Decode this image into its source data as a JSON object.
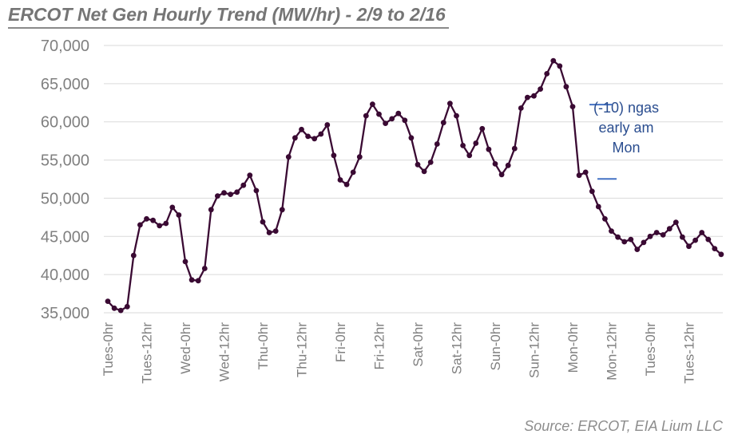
{
  "title": "ERCOT Net Gen Hourly Trend (MW/hr) - 2/9 to 2/16",
  "source_note": "Source: ERCOT, EIA Lium LLC",
  "annotation": {
    "lines": [
      "(-10) ngas",
      "early am",
      "Mon"
    ]
  },
  "colors": {
    "line": "#3a0a33",
    "marker": "#3a0a33",
    "grid": "#dadada",
    "axis_text": "#808080",
    "title_text": "#757575",
    "annotation_text": "#2a4d8f",
    "annotation_dash": "#4472c4",
    "source_text": "#8d8d8d",
    "background": "#ffffff"
  },
  "chart_data": {
    "type": "line",
    "title": "ERCOT Net Gen Hourly Trend (MW/hr) - 2/9 to 2/16",
    "series_name": "ERCOT net generation (MW/hr)",
    "xlabel": "",
    "ylabel": "",
    "legend": "none",
    "grid": "horizontal",
    "marker": "filled-circle",
    "ylim": [
      35000,
      70000
    ],
    "y_ticks": [
      35000,
      40000,
      45000,
      50000,
      55000,
      60000,
      65000,
      70000
    ],
    "y_tick_labels": [
      "35,000",
      "40,000",
      "45,000",
      "50,000",
      "55,000",
      "60,000",
      "65,000",
      "70,000"
    ],
    "x_tick_hours": [
      0,
      12,
      24,
      36,
      48,
      60,
      72,
      84,
      96,
      108,
      120,
      132,
      144,
      156,
      168,
      180
    ],
    "x_tick_labels": [
      "Tues-0hr",
      "Tues-12hr",
      "Wed-0hr",
      "Wed-12hr",
      "Thu-0hr",
      "Thu-12hr",
      "Fri-0hr",
      "Fri-12hr",
      "Sat-0hr",
      "Sat-12hr",
      "Sun-0hr",
      "Sun-12hr",
      "Mon-0hr",
      "Mon-12hr",
      "Tues-0hr",
      "Tues-12hr"
    ],
    "x_start_hour": 0,
    "x_step_hours": 2,
    "values": [
      36500,
      35600,
      35300,
      35800,
      42500,
      46500,
      47300,
      47100,
      46400,
      46700,
      48800,
      47800,
      41700,
      39300,
      39200,
      40800,
      48500,
      50300,
      50700,
      50500,
      50800,
      51700,
      53000,
      51000,
      46900,
      45500,
      45700,
      48500,
      55400,
      57900,
      59000,
      58100,
      57800,
      58400,
      59600,
      55600,
      52400,
      51800,
      53400,
      55400,
      60800,
      62300,
      61000,
      59800,
      60400,
      61100,
      60200,
      57900,
      54400,
      53500,
      54700,
      57100,
      59900,
      62400,
      60800,
      56900,
      55600,
      57200,
      59100,
      56400,
      54500,
      53100,
      54300,
      56500,
      61800,
      63200,
      63400,
      64300,
      66300,
      68000,
      67300,
      64600,
      62000,
      53000,
      53400,
      50900,
      48900,
      47300,
      45700,
      44900,
      44300,
      44600,
      43300,
      44200,
      45000,
      45500,
      45200,
      46000,
      46850,
      44900,
      43700,
      44500,
      45500,
      44600,
      43400,
      42650
    ],
    "annotation_callout": {
      "text": "(-10) ngas early am Mon",
      "upper_dash_y_value": 62000,
      "lower_dash_y_value": 53000
    }
  }
}
